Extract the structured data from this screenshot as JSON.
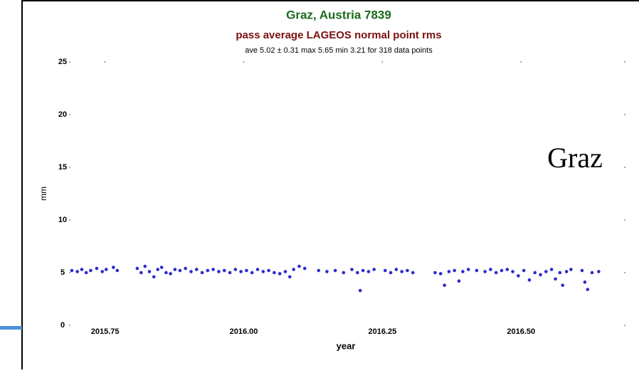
{
  "chart_data": {
    "type": "scatter",
    "title": "Graz, Austria 7839",
    "subtitle": "pass average LAGEOS normal point rms",
    "stats": "ave 5.02 ± 0.31 max 5.65 min 3.21 for 318 data points",
    "annotation": "Graz",
    "xlabel": "year",
    "ylabel": "mm",
    "xlim": [
      2015.685,
      2016.687
    ],
    "xticks": [
      2015.75,
      {
        "value": 2016,
        "label": "2016.00"
      },
      2016.25,
      {
        "value": 2016.5,
        "label": "2016.50"
      }
    ],
    "ylim": [
      0,
      25
    ],
    "yticks": [
      0,
      5,
      10,
      15,
      20,
      25
    ],
    "color": "#2a2ad0",
    "x": [
      2015.69,
      2015.7,
      2015.708,
      2015.716,
      2015.724,
      2015.735,
      2015.745,
      2015.752,
      2015.765,
      2015.772,
      2015.808,
      2015.815,
      2015.822,
      2015.83,
      2015.838,
      2015.845,
      2015.852,
      2015.86,
      2015.868,
      2015.876,
      2015.885,
      2015.895,
      2015.905,
      2015.915,
      2015.925,
      2015.935,
      2015.945,
      2015.955,
      2015.965,
      2015.975,
      2015.985,
      2015.995,
      2016.005,
      2016.015,
      2016.025,
      2016.035,
      2016.045,
      2016.055,
      2016.065,
      2016.075,
      2016.083,
      2016.09,
      2016.1,
      2016.11,
      2016.135,
      2016.15,
      2016.165,
      2016.18,
      2016.195,
      2016.205,
      2016.21,
      2016.215,
      2016.225,
      2016.235,
      2016.255,
      2016.265,
      2016.275,
      2016.285,
      2016.295,
      2016.305,
      2016.345,
      2016.355,
      2016.362,
      2016.37,
      2016.38,
      2016.388,
      2016.395,
      2016.405,
      2016.42,
      2016.435,
      2016.445,
      2016.455,
      2016.465,
      2016.475,
      2016.485,
      2016.495,
      2016.505,
      2016.515,
      2016.525,
      2016.535,
      2016.545,
      2016.555,
      2016.562,
      2016.57,
      2016.575,
      2016.582,
      2016.59,
      2016.61,
      2016.615,
      2016.62,
      2016.628,
      2016.64
    ],
    "y": [
      5.2,
      5.1,
      5.3,
      5.0,
      5.2,
      5.4,
      5.1,
      5.3,
      5.5,
      5.2,
      5.4,
      5.0,
      5.6,
      5.1,
      4.6,
      5.3,
      5.5,
      5.0,
      4.9,
      5.3,
      5.2,
      5.4,
      5.1,
      5.3,
      5.0,
      5.2,
      5.3,
      5.1,
      5.2,
      5.0,
      5.3,
      5.1,
      5.2,
      5.0,
      5.3,
      5.1,
      5.2,
      5.0,
      4.9,
      5.1,
      4.6,
      5.3,
      5.6,
      5.4,
      5.2,
      5.1,
      5.2,
      5.0,
      5.3,
      5.0,
      3.3,
      5.2,
      5.1,
      5.3,
      5.2,
      5.0,
      5.3,
      5.1,
      5.2,
      5.0,
      5.0,
      4.9,
      3.8,
      5.1,
      5.2,
      4.2,
      5.1,
      5.3,
      5.2,
      5.1,
      5.3,
      5.0,
      5.2,
      5.3,
      5.1,
      4.7,
      5.2,
      4.3,
      5.0,
      4.8,
      5.1,
      5.3,
      4.4,
      5.0,
      3.8,
      5.1,
      5.3,
      5.2,
      4.1,
      3.4,
      5.0,
      5.1
    ]
  }
}
